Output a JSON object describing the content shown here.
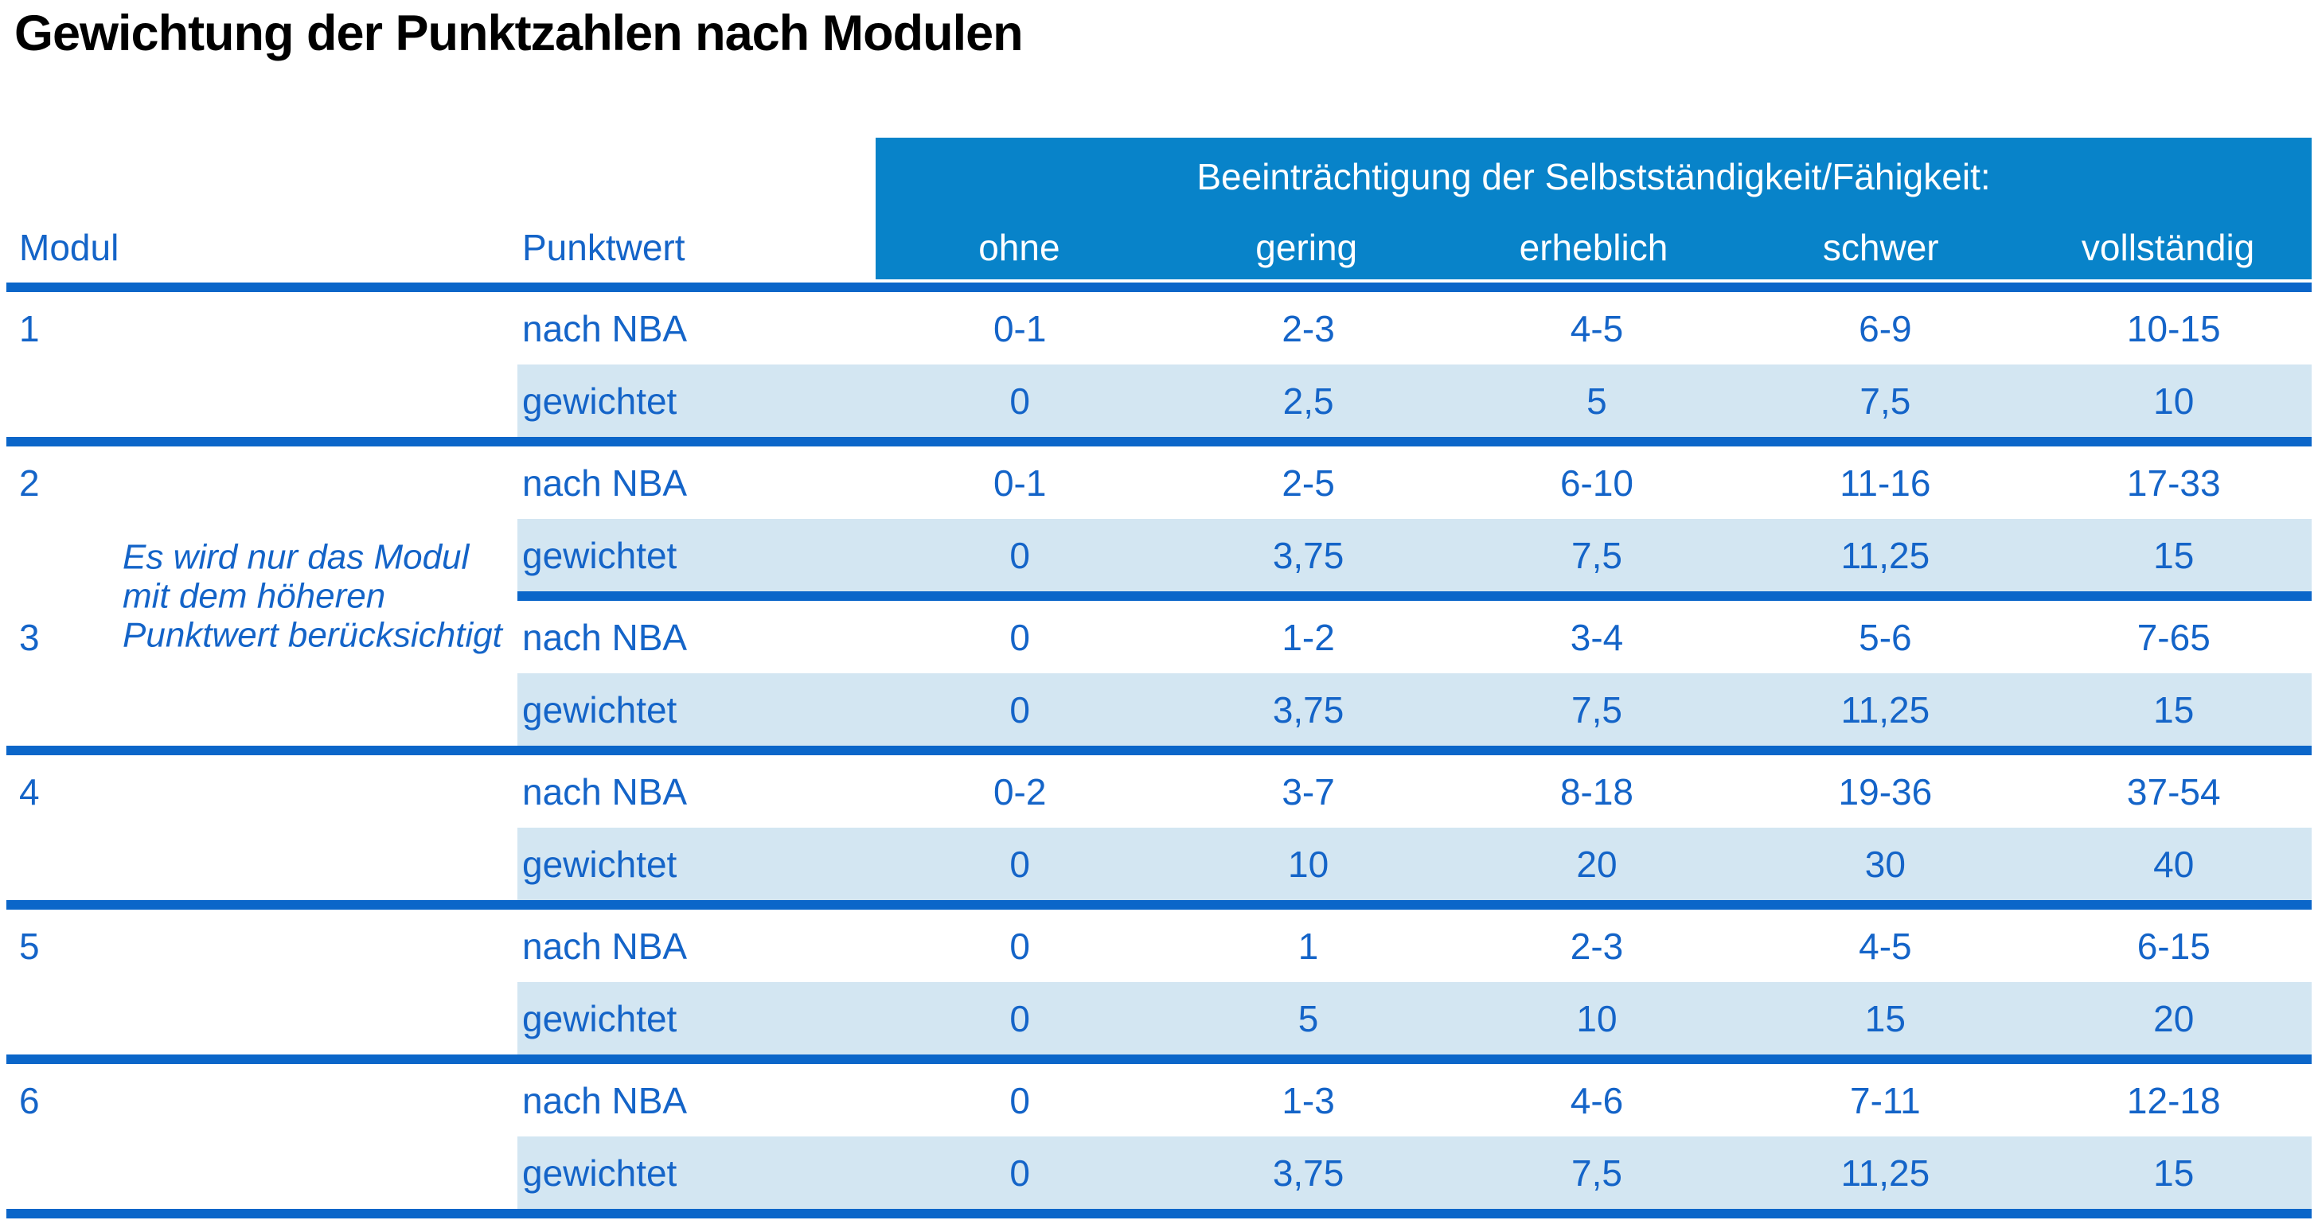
{
  "title": "Gewichtung der Punktzahlen nach Modulen",
  "table": {
    "modul_header": "Modul",
    "punktwert_header": "Punktwert",
    "impairment_header": "Beeinträchtigung der Selbstständigkeit/Fähigkeit:",
    "severity_levels": [
      "ohne",
      "gering",
      "erheblich",
      "schwer",
      "vollständig"
    ],
    "row_labels": {
      "nba": "nach NBA",
      "weighted": "gewichtet"
    },
    "note": {
      "lines": [
        "Es wird nur das Modul",
        "mit dem höheren",
        "Punktwert berücksichtigt"
      ]
    },
    "modules": [
      {
        "id": "1",
        "nba": [
          "0-1",
          "2-3",
          "4-5",
          "6-9",
          "10-15"
        ],
        "weighted": [
          "0",
          "2,5",
          "5",
          "7,5",
          "10"
        ]
      },
      {
        "id": "2",
        "nba": [
          "0-1",
          "2-5",
          "6-10",
          "11-16",
          "17-33"
        ],
        "weighted": [
          "0",
          "3,75",
          "7,5",
          "11,25",
          "15"
        ]
      },
      {
        "id": "3",
        "nba": [
          "0",
          "1-2",
          "3-4",
          "5-6",
          "7-65"
        ],
        "weighted": [
          "0",
          "3,75",
          "7,5",
          "11,25",
          "15"
        ]
      },
      {
        "id": "4",
        "nba": [
          "0-2",
          "3-7",
          "8-18",
          "19-36",
          "37-54"
        ],
        "weighted": [
          "0",
          "10",
          "20",
          "30",
          "40"
        ]
      },
      {
        "id": "5",
        "nba": [
          "0",
          "1",
          "2-3",
          "4-5",
          "6-15"
        ],
        "weighted": [
          "0",
          "5",
          "10",
          "15",
          "20"
        ]
      },
      {
        "id": "6",
        "nba": [
          "0",
          "1-3",
          "4-6",
          "7-11",
          "12-18"
        ],
        "weighted": [
          "0",
          "3,75",
          "7,5",
          "11,25",
          "15"
        ]
      }
    ]
  },
  "colors": {
    "header_bg": "#0883c9",
    "shaded_row_bg": "#d3e6f2",
    "separator_line": "#0b66c9",
    "text_blue": "#1464c8",
    "title_text": "#000000",
    "header_text": "#ffffff"
  }
}
